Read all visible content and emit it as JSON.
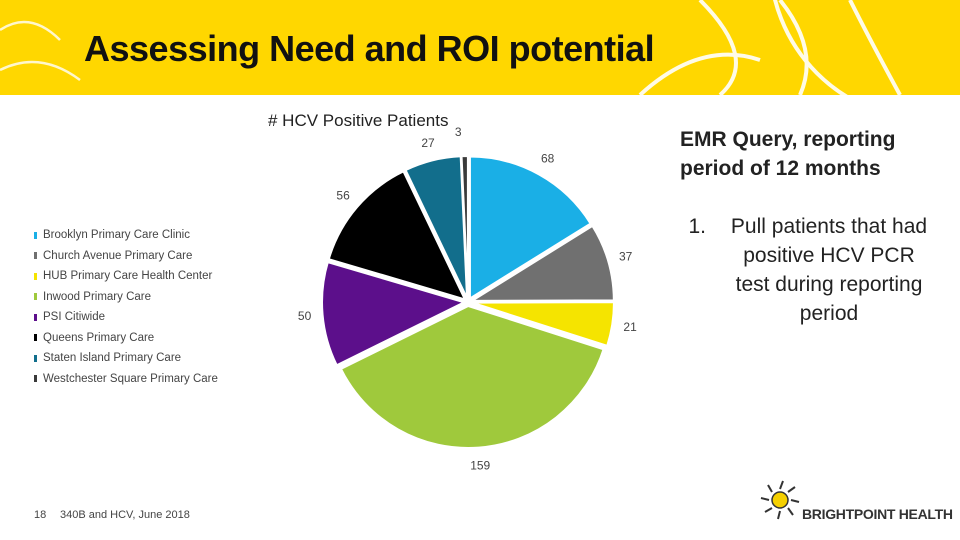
{
  "slide": {
    "title": "Assessing Need and ROI potential",
    "page_number": "18",
    "footer": "340B and HCV, June 2018"
  },
  "notes": {
    "heading_line1": "EMR Query, reporting",
    "heading_line2": "period of 12 months",
    "steps": [
      {
        "number": "1.",
        "lines": [
          "Pull patients that had",
          "positive HCV PCR",
          "test during reporting",
          "period"
        ]
      }
    ]
  },
  "logo": {
    "text": "BRIGHTPOINT HEALTH",
    "icon": "sun-icon"
  },
  "colors": {
    "header": "#ffd700"
  },
  "chart_data": {
    "type": "pie",
    "title": "# HCV Positive Patients",
    "legend_position": "left",
    "slices": [
      {
        "name": "Brooklyn Primary Care Clinic",
        "value": 68,
        "color": "#1aafe6"
      },
      {
        "name": "Church Avenue Primary Care",
        "value": 37,
        "color": "#707070"
      },
      {
        "name": "HUB Primary Care Health Center",
        "value": 21,
        "color": "#f5e400"
      },
      {
        "name": "Inwood Primary Care",
        "value": 159,
        "color": "#9fc93c"
      },
      {
        "name": "PSI Citiwide",
        "value": 50,
        "color": "#5c0f8b"
      },
      {
        "name": "Queens Primary Care",
        "value": 56,
        "color": "#000000"
      },
      {
        "name": "Staten Island Primary Care",
        "value": 27,
        "color": "#126e8c"
      },
      {
        "name": "Westchester Square Primary Care",
        "value": 3,
        "color": "#3a3a3a"
      }
    ]
  }
}
